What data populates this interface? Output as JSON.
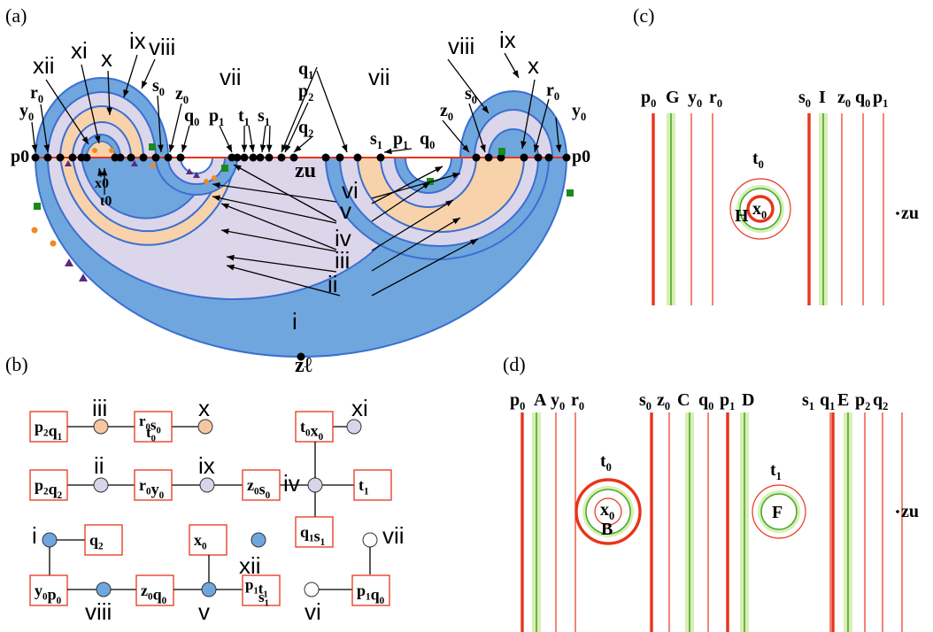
{
  "panels": {
    "a": "(a)",
    "b": "(b)",
    "c": "(c)",
    "d": "(d)"
  },
  "panel_a": {
    "region_labels": [
      "xii",
      "xi",
      "x",
      "ix",
      "viii",
      "vii",
      "vii",
      "viii",
      "ix",
      "x",
      "vi",
      "v",
      "iv",
      "iii",
      "ii",
      "i"
    ],
    "axis_left": "p0",
    "axis_right": "p0",
    "zu": "zu",
    "zl": "zℓ",
    "top_labels": [
      "r0",
      "y0",
      "s0",
      "z0",
      "q0",
      "p1",
      "t1",
      "s1",
      "q1",
      "p2",
      "q2",
      "s1",
      "p1",
      "q0",
      "z0",
      "s0",
      "r0",
      "y0"
    ],
    "inner_labels": [
      "x0",
      "t0"
    ]
  },
  "panel_b": {
    "boxes": [
      "p2q1",
      "r0s0t0",
      "t0x0",
      "p2q2",
      "r0y0",
      "z0s0",
      "t1",
      "q2",
      "x0",
      "q1s1",
      "y0p0",
      "z0q0",
      "p1t1s1",
      "p1q0"
    ],
    "node_labels": [
      "iii",
      "x",
      "xi",
      "ii",
      "ix",
      "iv",
      "i",
      "xii",
      "vii",
      "viii",
      "v",
      "vi"
    ],
    "colors": {
      "orange": "#f6c8a2",
      "lavender": "#d9d4e8",
      "blue": "#6fa6de",
      "white": "#ffffff"
    }
  },
  "panel_c": {
    "top": [
      "p0",
      "G",
      "y0",
      "r0",
      "s0",
      "I",
      "z0",
      "q0",
      "p1"
    ],
    "t0": "t0",
    "x0": "x0",
    "H": "H",
    "zu": "·zu"
  },
  "panel_d": {
    "top": [
      "p0",
      "A",
      "y0",
      "r0",
      "s0",
      "z0",
      "C",
      "q0",
      "p1",
      "D",
      "s1",
      "q1",
      "E",
      "p2",
      "q2"
    ],
    "t0": "t0",
    "x0": "x0",
    "B": "B",
    "t1": "t1",
    "F": "F",
    "zu": "·zu"
  },
  "palette": {
    "blue": "#6fa6de",
    "blueline": "#3b6fd0",
    "lavender": "#dcd6ea",
    "peach": "#f8d2ab",
    "red": "#e8341c",
    "green": "#4aa832",
    "glow": "#d9efb2"
  }
}
